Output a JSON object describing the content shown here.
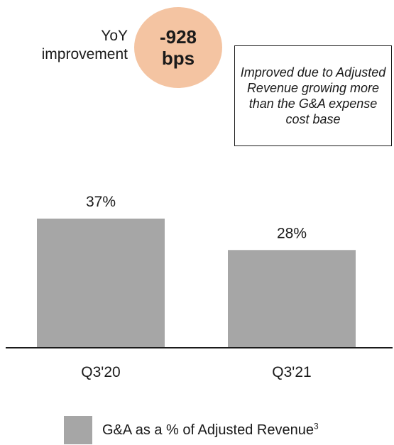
{
  "yoy": {
    "label_line1": "YoY",
    "label_line2": "improvement",
    "value_line1": "-928",
    "value_line2": "bps"
  },
  "note": "Improved due to Adjusted Revenue growing more than the G&A expense cost base",
  "legend": {
    "label": "G&A as a % of Adjusted Revenue",
    "superscript": "3"
  },
  "colors": {
    "bar": "#a6a6a6",
    "badge": "#f4c4a2",
    "axis": "#1a1a1a"
  },
  "chart_data": {
    "type": "bar",
    "categories": [
      "Q3'20",
      "Q3'21"
    ],
    "values": [
      37,
      28
    ],
    "value_labels": [
      "37%",
      "28%"
    ],
    "series": [
      {
        "name": "G&A as a % of Adjusted Revenue",
        "values": [
          37,
          28
        ]
      }
    ],
    "ylim": [
      0,
      37
    ],
    "grid": false,
    "legend_position": "bottom"
  }
}
